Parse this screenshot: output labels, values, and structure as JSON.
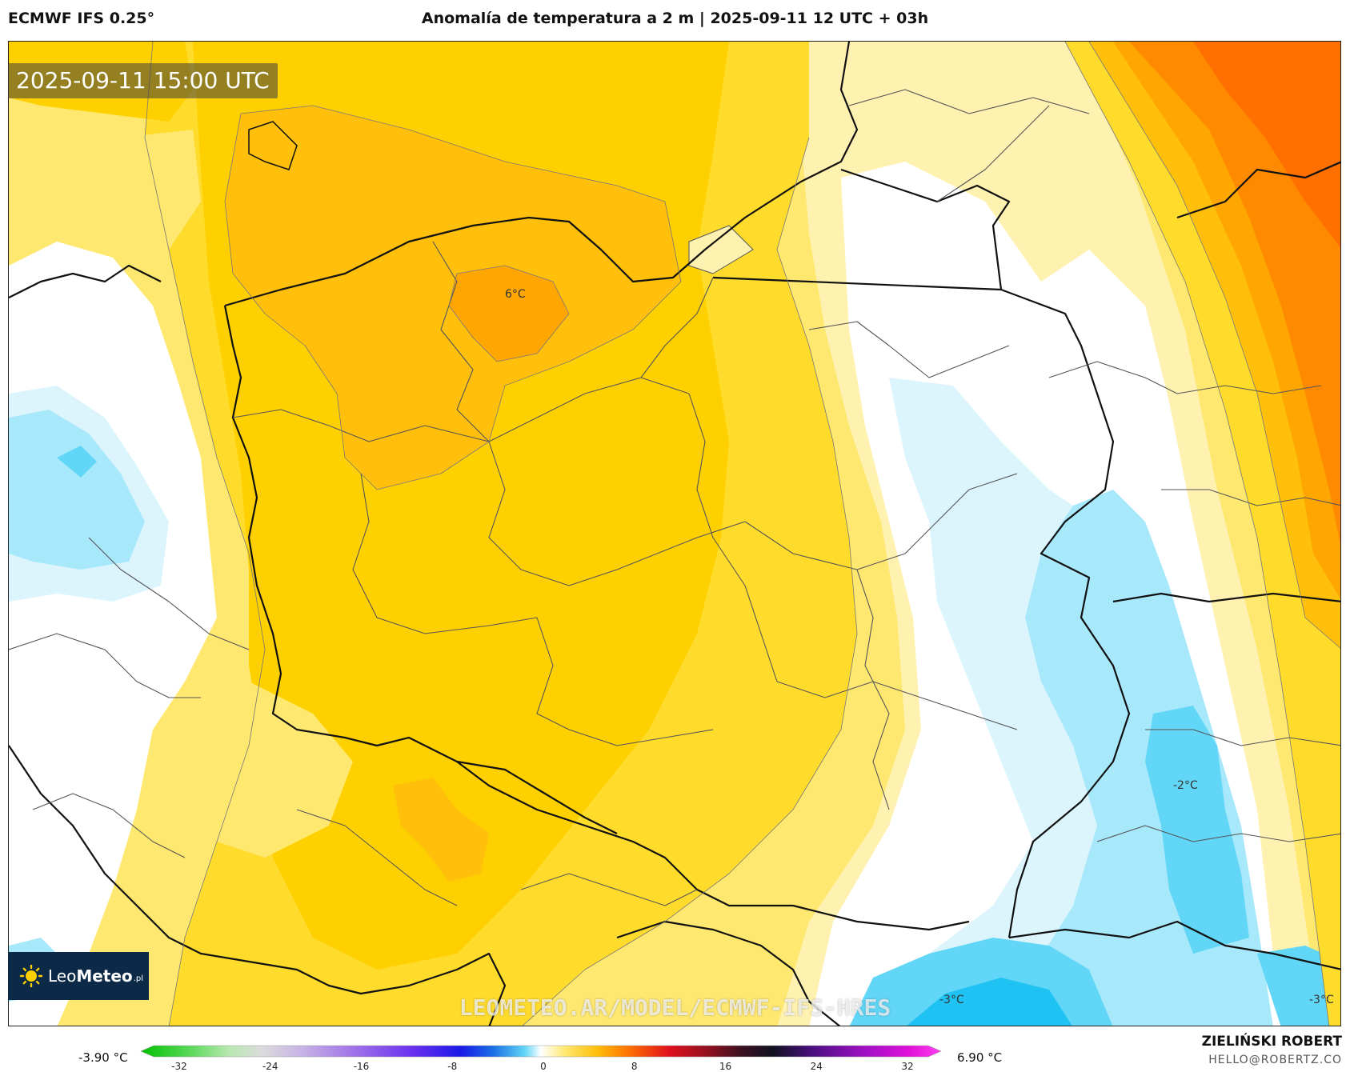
{
  "header": {
    "model": "ECMWF IFS 0.25°",
    "title": "Anomalía de temperatura a 2 m | 2025-09-11 12 UTC + 03h"
  },
  "map": {
    "valid_time": "2025-09-11 15:00 UTC",
    "watermark": "LEOMETEO.AR/MODEL/ECMWF-IFS-HRES",
    "isoline_labels": [
      "6°C",
      "-2°C",
      "-3°C",
      "-3°C"
    ],
    "palette": {
      "deep_blue": "#1fc3f3",
      "blue": "#62d6f7",
      "light_blue": "#a8e8fb",
      "pale_blue": "#dcf5fd",
      "white": "#ffffff",
      "pale_yellow": "#fff1b0",
      "light_yellow": "#ffe870",
      "yellow": "#ffdc2c",
      "gold": "#ffd000",
      "amber": "#ffbf0a",
      "orange": "#ffa600",
      "deep_orange": "#ff8a00",
      "red_orange": "#ff7000"
    }
  },
  "logo": {
    "icon": "sun-logo-icon",
    "name_light": "Leo",
    "name_bold": "Meteo",
    "suffix": ".pl"
  },
  "legend": {
    "min_label": "-3.90 °C",
    "max_label": "6.90 °C",
    "ticks": [
      "-32",
      "-24",
      "-16",
      "-8",
      "0",
      "8",
      "16",
      "24",
      "32"
    ],
    "range": [
      -32,
      32
    ]
  },
  "footer": {
    "author": "ZIELIŃSKI ROBERT",
    "email": "HELLO@ROBERTZ.CO"
  }
}
